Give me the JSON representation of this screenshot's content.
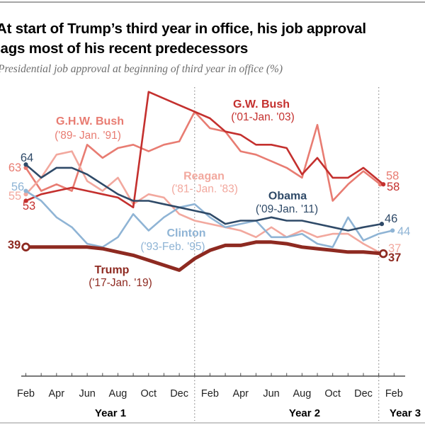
{
  "header": {
    "title_line1": "At start of Trump’s third year in office, his job approval",
    "title_line2": "lags most of his recent predecessors",
    "subtitle": "Presidential job approval at beginning of third year in office (%)"
  },
  "chart_data": {
    "type": "line",
    "title": "At start of Trump’s third year in office, his job approval lags most of his recent predecessors",
    "subtitle": "Presidential job approval at beginning of third year in office (%)",
    "y_range": [
      0,
      88
    ],
    "grid": "off",
    "month_tick_labels": [
      "Feb",
      "Apr",
      "Jun",
      "Aug",
      "Oct",
      "Dec",
      "Feb",
      "Apr",
      "Jun",
      "Aug",
      "Oct",
      "Dec",
      "Feb"
    ],
    "year_labels": [
      "Year 1",
      "Year 2",
      "Year 3"
    ],
    "year_boundary_months": [
      11,
      23
    ],
    "series": [
      {
        "id": "ghw_bush",
        "name": "G.H.W. Bush",
        "term": "('89- Jan. '91)",
        "color": "#E87C72",
        "start_value": 63,
        "end_value": 58,
        "points": [
          [
            0,
            63
          ],
          [
            1,
            56
          ],
          [
            2,
            58
          ],
          [
            3,
            56
          ],
          [
            4,
            70
          ],
          [
            5,
            66
          ],
          [
            6,
            69
          ],
          [
            7,
            70
          ],
          [
            8,
            68
          ],
          [
            9,
            70
          ],
          [
            10,
            71
          ],
          [
            11,
            80
          ],
          [
            12,
            75
          ],
          [
            13,
            74
          ],
          [
            14,
            68
          ],
          [
            15,
            67
          ],
          [
            16,
            65
          ],
          [
            17,
            63
          ],
          [
            18,
            60
          ],
          [
            19,
            76
          ],
          [
            20,
            53
          ],
          [
            21,
            58
          ],
          [
            22,
            62
          ],
          [
            23.1,
            58
          ]
        ]
      },
      {
        "id": "reagan",
        "name": "Reagan",
        "term": "('81- Jan. '83)",
        "color": "#F2A89E",
        "start_value": 55,
        "end_value": 37,
        "points": [
          [
            0,
            55
          ],
          [
            1,
            60
          ],
          [
            2,
            67
          ],
          [
            3,
            68
          ],
          [
            4,
            59
          ],
          [
            5,
            56
          ],
          [
            6,
            60
          ],
          [
            7,
            52
          ],
          [
            8,
            55
          ],
          [
            9,
            54
          ],
          [
            10,
            49
          ],
          [
            11,
            47
          ],
          [
            12,
            46
          ],
          [
            13,
            45
          ],
          [
            14,
            44
          ],
          [
            15,
            42
          ],
          [
            16,
            45
          ],
          [
            17,
            42
          ],
          [
            18,
            44
          ],
          [
            19,
            42
          ],
          [
            20,
            43
          ],
          [
            21,
            43
          ],
          [
            22,
            40
          ],
          [
            23.2,
            37
          ]
        ]
      },
      {
        "id": "gw_bush",
        "name": "G.W. Bush",
        "term": "('01-Jan. '03)",
        "color": "#C4302E",
        "start_value": 53,
        "end_value": 58,
        "points": [
          [
            0,
            53
          ],
          [
            1,
            55
          ],
          [
            2,
            56
          ],
          [
            3,
            57
          ],
          [
            4,
            56
          ],
          [
            5,
            55
          ],
          [
            6,
            54
          ],
          [
            7,
            51
          ],
          [
            8,
            86
          ],
          [
            9,
            84
          ],
          [
            10,
            82
          ],
          [
            11,
            80
          ],
          [
            12,
            78
          ],
          [
            13,
            74
          ],
          [
            14,
            73
          ],
          [
            15,
            70
          ],
          [
            16,
            70
          ],
          [
            17,
            69
          ],
          [
            18,
            61
          ],
          [
            19,
            66
          ],
          [
            20,
            60
          ],
          [
            21,
            60
          ],
          [
            22,
            63
          ],
          [
            23.3,
            58
          ]
        ]
      },
      {
        "id": "clinton",
        "name": "Clinton",
        "term": "('93-Feb. '95)",
        "color": "#8FB4D5",
        "start_value": 56,
        "end_value": 44,
        "points": [
          [
            0,
            56
          ],
          [
            1,
            53
          ],
          [
            2,
            48
          ],
          [
            3,
            45
          ],
          [
            4,
            40
          ],
          [
            5,
            39
          ],
          [
            6,
            42
          ],
          [
            7,
            49
          ],
          [
            8,
            44
          ],
          [
            9,
            48
          ],
          [
            10,
            51
          ],
          [
            11,
            52
          ],
          [
            12,
            48
          ],
          [
            13,
            45
          ],
          [
            14,
            46
          ],
          [
            15,
            47
          ],
          [
            16,
            42
          ],
          [
            17,
            42
          ],
          [
            18,
            43
          ],
          [
            19,
            40
          ],
          [
            20,
            39
          ],
          [
            21,
            48
          ],
          [
            22,
            41
          ],
          [
            23,
            43
          ],
          [
            23.9,
            44
          ]
        ]
      },
      {
        "id": "obama",
        "name": "Obama",
        "term": "('09-Jan. '11)",
        "color": "#2F4A68",
        "start_value": 64,
        "end_value": 46,
        "points": [
          [
            0,
            64
          ],
          [
            1,
            60
          ],
          [
            2,
            63
          ],
          [
            3,
            63
          ],
          [
            4,
            61
          ],
          [
            5,
            58
          ],
          [
            6,
            55
          ],
          [
            7,
            53
          ],
          [
            8,
            53
          ],
          [
            9,
            52
          ],
          [
            10,
            51
          ],
          [
            11,
            50
          ],
          [
            12,
            49
          ],
          [
            13,
            46
          ],
          [
            14,
            47
          ],
          [
            15,
            47
          ],
          [
            16,
            48
          ],
          [
            17,
            47
          ],
          [
            18,
            47
          ],
          [
            19,
            46
          ],
          [
            20,
            45
          ],
          [
            21,
            44
          ],
          [
            22,
            45
          ],
          [
            23.2,
            46
          ]
        ]
      },
      {
        "id": "trump",
        "name": "Trump",
        "term": "('17-Jan. '19)",
        "color": "#8E2A21",
        "start_value": 39,
        "end_value": 37,
        "emphasis": true,
        "points": [
          [
            0,
            39
          ],
          [
            1,
            39
          ],
          [
            2,
            39
          ],
          [
            3,
            39
          ],
          [
            4,
            39
          ],
          [
            5,
            38.5
          ],
          [
            6,
            37.5
          ],
          [
            7,
            36.5
          ],
          [
            8,
            35
          ],
          [
            9,
            33.5
          ],
          [
            10,
            32
          ],
          [
            11,
            35.5
          ],
          [
            12,
            38
          ],
          [
            13,
            39.5
          ],
          [
            14,
            39.5
          ],
          [
            15,
            40.5
          ],
          [
            16,
            40.5
          ],
          [
            17,
            40
          ],
          [
            18,
            39
          ],
          [
            19,
            38.5
          ],
          [
            20,
            38
          ],
          [
            21,
            37.5
          ],
          [
            22,
            37.5
          ],
          [
            23.3,
            37
          ]
        ]
      }
    ]
  }
}
